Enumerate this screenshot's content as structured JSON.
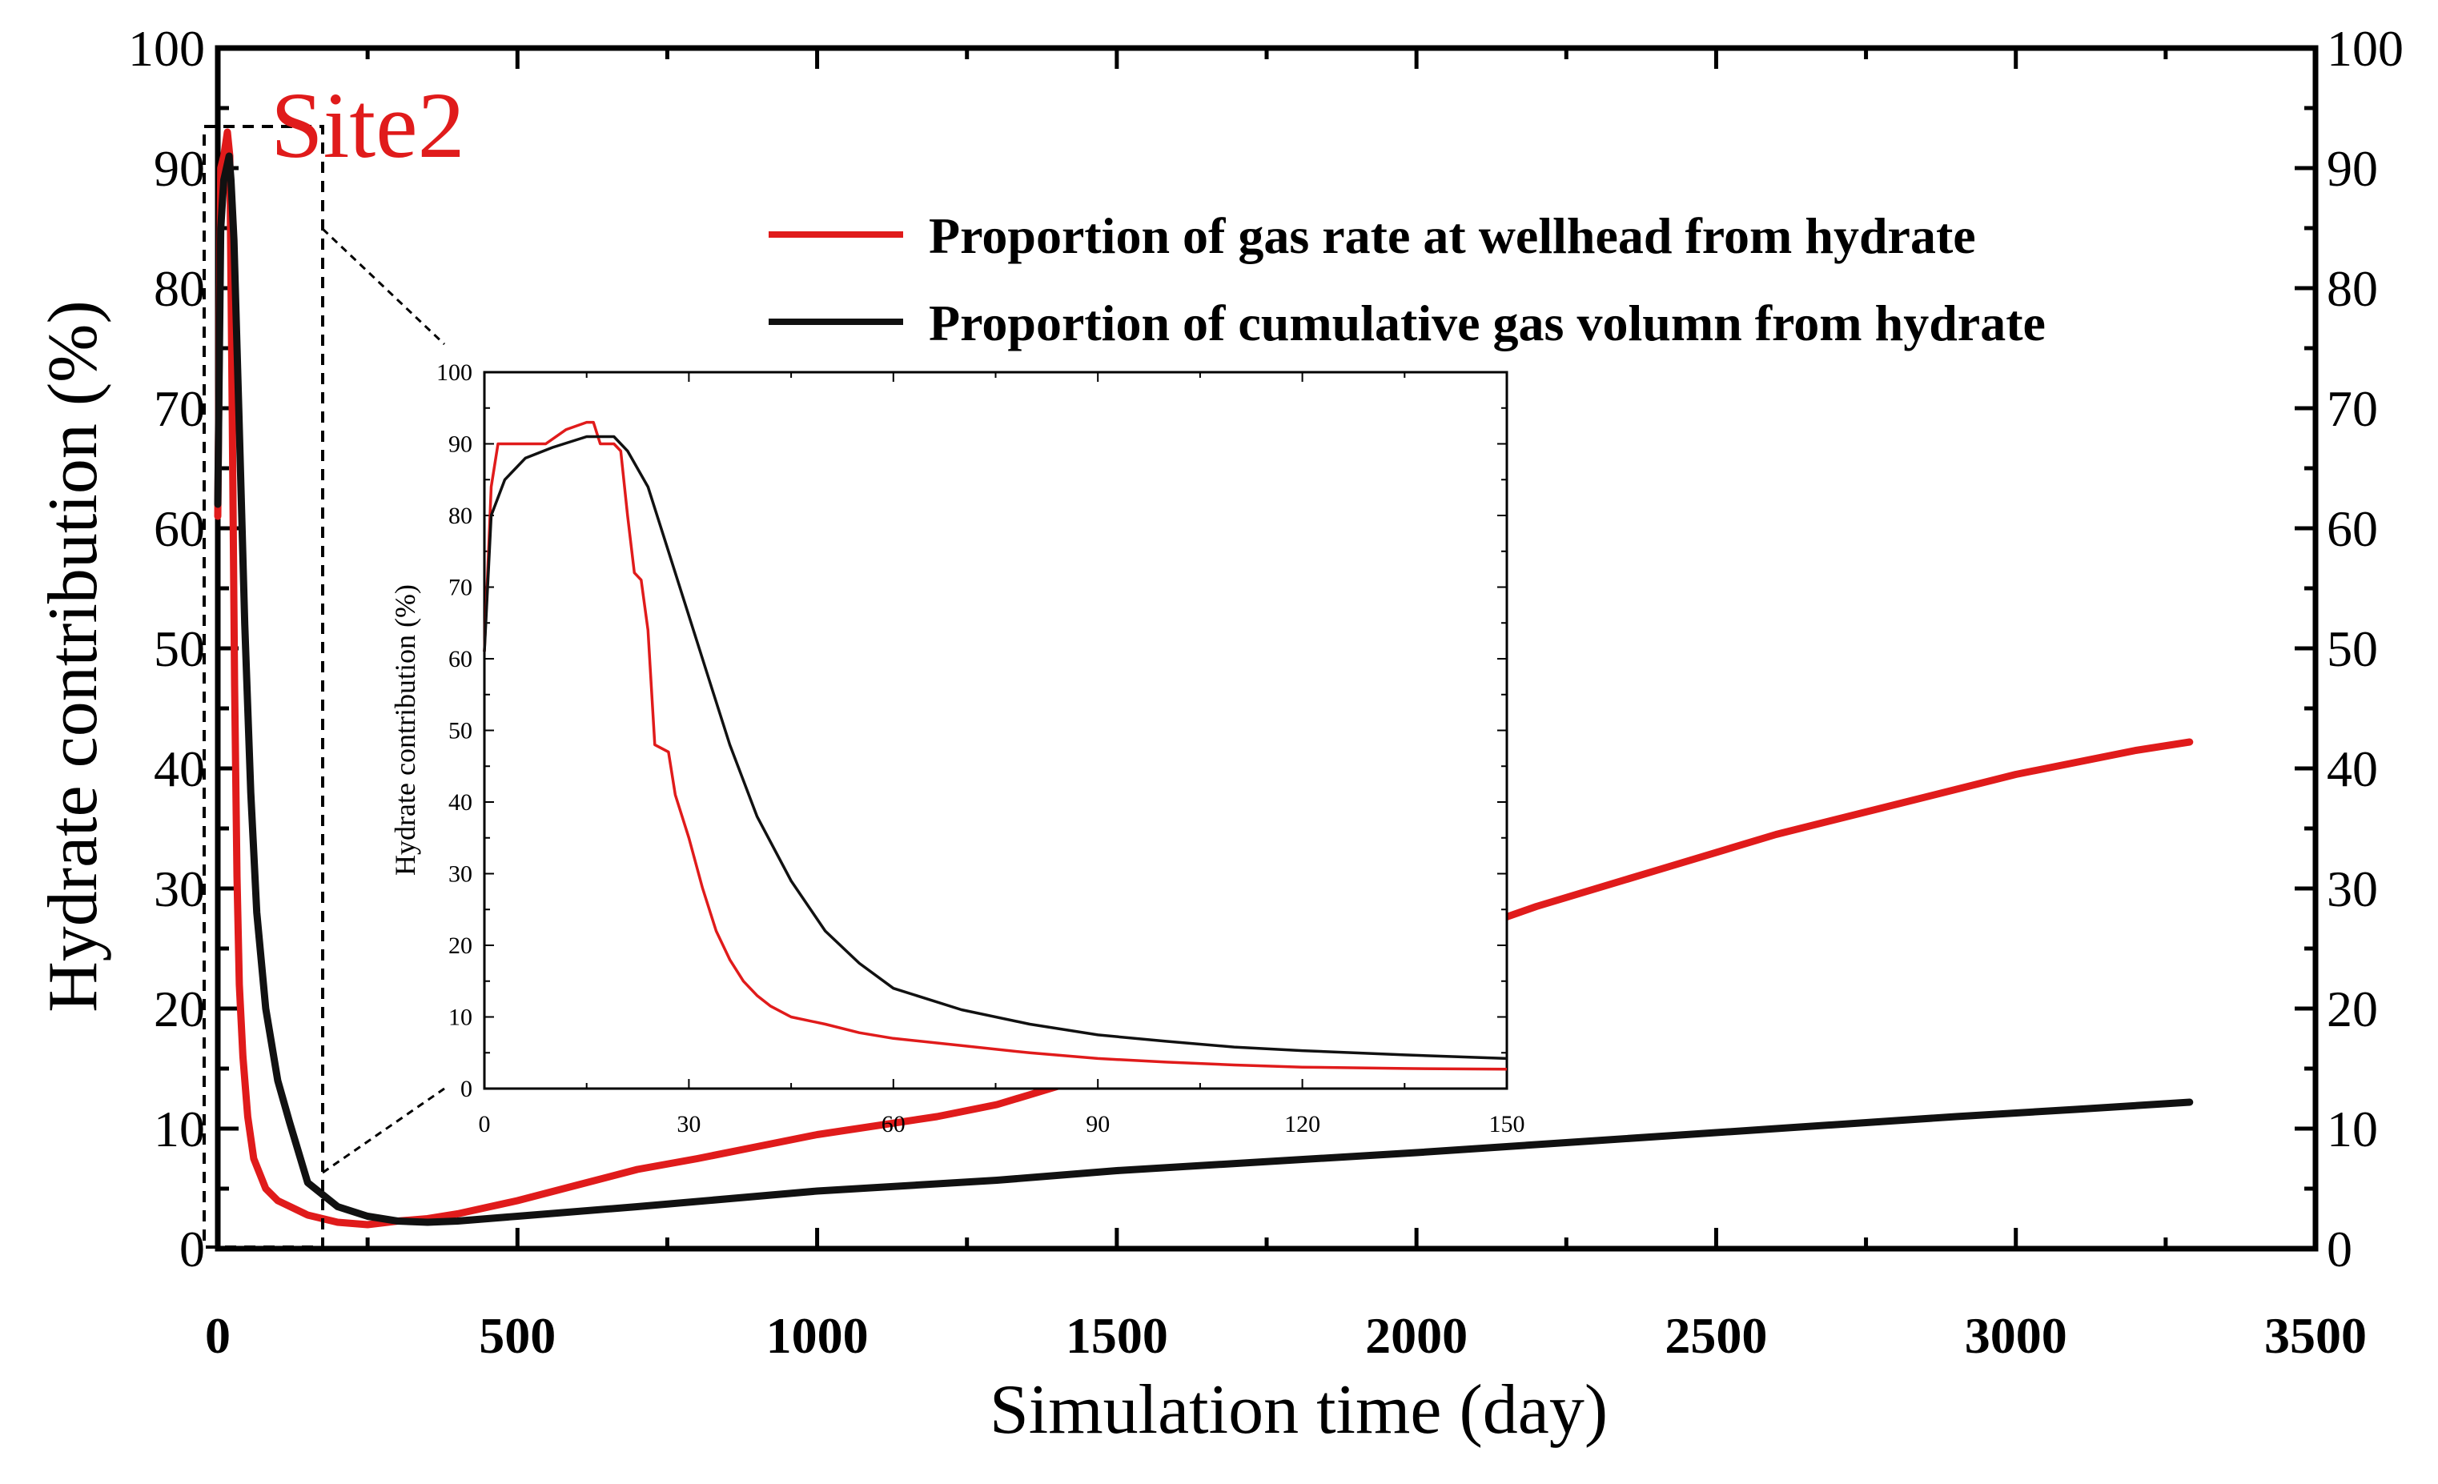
{
  "chart_data": [
    {
      "id": "main",
      "type": "line",
      "annotation": "Site2",
      "xlabel": "Simulation time (day)",
      "ylabel": "Hydrate contribution (%)",
      "xlim": [
        0,
        3500
      ],
      "ylim": [
        0,
        100
      ],
      "x_ticks": [
        "0",
        "500",
        "1000",
        "1500",
        "2000",
        "2500",
        "3000",
        "3500"
      ],
      "y_ticks_left": [
        "0",
        "10",
        "20",
        "30",
        "40",
        "50",
        "60",
        "70",
        "80",
        "90",
        "100"
      ],
      "y_ticks_right": [
        "0",
        "10",
        "20",
        "30",
        "40",
        "50",
        "60",
        "70",
        "80",
        "90",
        "100"
      ],
      "legend_position": "top-right",
      "series": [
        {
          "name": "Proportion of gas rate at wellhead from hydrate",
          "color": "#e01b1b",
          "points": [
            [
              0,
              61
            ],
            [
              5,
              90
            ],
            [
              10,
              91
            ],
            [
              16,
              93
            ],
            [
              20,
              91
            ],
            [
              24,
              70
            ],
            [
              28,
              47
            ],
            [
              32,
              31
            ],
            [
              36,
              22
            ],
            [
              42,
              16
            ],
            [
              50,
              11
            ],
            [
              60,
              7.5
            ],
            [
              80,
              5
            ],
            [
              100,
              4
            ],
            [
              150,
              2.8
            ],
            [
              200,
              2.2
            ],
            [
              250,
              2
            ],
            [
              300,
              2.3
            ],
            [
              350,
              2.5
            ],
            [
              400,
              2.9
            ],
            [
              500,
              4
            ],
            [
              600,
              5.3
            ],
            [
              700,
              6.6
            ],
            [
              800,
              7.5
            ],
            [
              900,
              8.5
            ],
            [
              1000,
              9.5
            ],
            [
              1200,
              11
            ],
            [
              1300,
              12
            ],
            [
              1400,
              13.5
            ],
            [
              1500,
              15
            ],
            [
              1600,
              17
            ],
            [
              1700,
              19
            ],
            [
              1800,
              21
            ],
            [
              2000,
              25
            ],
            [
              2200,
              28.5
            ],
            [
              2400,
              31.5
            ],
            [
              2600,
              34.5
            ],
            [
              2800,
              37
            ],
            [
              3000,
              39.5
            ],
            [
              3200,
              41.5
            ],
            [
              3290,
              42.2
            ]
          ]
        },
        {
          "name": "Proportion of cumulative gas volumn from hydrate",
          "color": "#111111",
          "points": [
            [
              0,
              62
            ],
            [
              5,
              85
            ],
            [
              10,
              89
            ],
            [
              19,
              91
            ],
            [
              22,
              89
            ],
            [
              27,
              84
            ],
            [
              35,
              70
            ],
            [
              45,
              52
            ],
            [
              55,
              38
            ],
            [
              65,
              28
            ],
            [
              80,
              20
            ],
            [
              100,
              14
            ],
            [
              120,
              10.5
            ],
            [
              150,
              5.5
            ],
            [
              200,
              3.5
            ],
            [
              250,
              2.7
            ],
            [
              300,
              2.3
            ],
            [
              350,
              2.2
            ],
            [
              400,
              2.3
            ],
            [
              500,
              2.7
            ],
            [
              700,
              3.5
            ],
            [
              1000,
              4.8
            ],
            [
              1300,
              5.7
            ],
            [
              1500,
              6.5
            ],
            [
              1700,
              7.1
            ],
            [
              2000,
              8
            ],
            [
              2300,
              9
            ],
            [
              2600,
              10
            ],
            [
              2900,
              11
            ],
            [
              3100,
              11.6
            ],
            [
              3290,
              12.2
            ]
          ]
        }
      ]
    },
    {
      "id": "inset",
      "type": "line",
      "xlabel": "",
      "ylabel": "Hydrate contribution (%)",
      "xlim": [
        0,
        150
      ],
      "ylim": [
        0,
        100
      ],
      "x_ticks": [
        "0",
        "30",
        "60",
        "90",
        "120",
        "150"
      ],
      "y_ticks": [
        "0",
        "10",
        "20",
        "30",
        "40",
        "50",
        "60",
        "70",
        "80",
        "90",
        "100"
      ],
      "series": [
        {
          "name": "Proportion of gas rate at wellhead from hydrate",
          "color": "#e01b1b",
          "points": [
            [
              0,
              61
            ],
            [
              1,
              84
            ],
            [
              2,
              90
            ],
            [
              6,
              90
            ],
            [
              9,
              90
            ],
            [
              12,
              92
            ],
            [
              15,
              93
            ],
            [
              16,
              93
            ],
            [
              17,
              90
            ],
            [
              19,
              90
            ],
            [
              20,
              89
            ],
            [
              21,
              80
            ],
            [
              22,
              72
            ],
            [
              23,
              71
            ],
            [
              24,
              64
            ],
            [
              25,
              48
            ],
            [
              27,
              47
            ],
            [
              28,
              41
            ],
            [
              30,
              35
            ],
            [
              32,
              28
            ],
            [
              34,
              22
            ],
            [
              36,
              18
            ],
            [
              38,
              15
            ],
            [
              40,
              13
            ],
            [
              42,
              11.5
            ],
            [
              45,
              10
            ],
            [
              50,
              9
            ],
            [
              55,
              7.8
            ],
            [
              60,
              7
            ],
            [
              70,
              6
            ],
            [
              80,
              5
            ],
            [
              90,
              4.2
            ],
            [
              100,
              3.7
            ],
            [
              110,
              3.3
            ],
            [
              120,
              3
            ],
            [
              135,
              2.8
            ],
            [
              150,
              2.7
            ]
          ]
        },
        {
          "name": "Proportion of cumulative gas volumn from hydrate",
          "color": "#111111",
          "points": [
            [
              0,
              61
            ],
            [
              1,
              80
            ],
            [
              3,
              85
            ],
            [
              6,
              88
            ],
            [
              10,
              89.5
            ],
            [
              15,
              91
            ],
            [
              19,
              91
            ],
            [
              21,
              89
            ],
            [
              24,
              84
            ],
            [
              27,
              75
            ],
            [
              30,
              66
            ],
            [
              33,
              57
            ],
            [
              36,
              48
            ],
            [
              40,
              38
            ],
            [
              45,
              29
            ],
            [
              50,
              22
            ],
            [
              55,
              17.5
            ],
            [
              60,
              14
            ],
            [
              70,
              11
            ],
            [
              80,
              9
            ],
            [
              90,
              7.5
            ],
            [
              100,
              6.6
            ],
            [
              110,
              5.8
            ],
            [
              120,
              5.3
            ],
            [
              135,
              4.7
            ],
            [
              150,
              4.2
            ]
          ]
        }
      ]
    }
  ]
}
